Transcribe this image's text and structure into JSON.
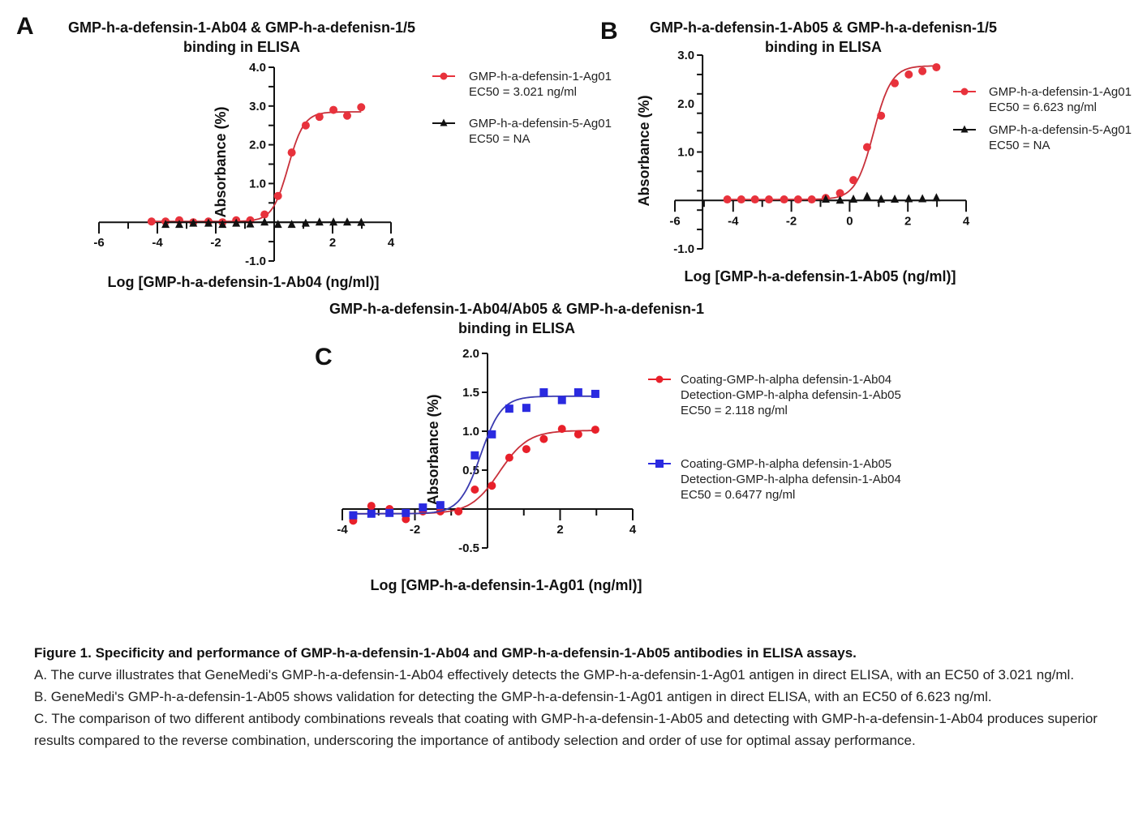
{
  "chart_data": [
    {
      "panel": "A",
      "type": "scatter",
      "title": [
        "GMP-h-a-defensin-1-Ab04 & GMP-h-a-defenisn-1/5",
        "binding in ELISA"
      ],
      "xlabel": "Log [GMP-h-a-defensin-1-Ab04 (ng/ml)]",
      "ylabel": "Absorbance (%)",
      "xlim": [
        -6,
        4
      ],
      "ylim": [
        -1.0,
        4.0
      ],
      "xticks": [
        "-6",
        "-4",
        "-2",
        "2",
        "4"
      ],
      "xtick_values": [
        -6,
        -4,
        -2,
        2,
        4
      ],
      "yticks": [
        "4.0",
        "3.0",
        "2.0",
        "1.0",
        "-1.0"
      ],
      "ytick_values": [
        4,
        3,
        2,
        1,
        -1
      ],
      "grid": false,
      "legend": "right",
      "series": [
        {
          "name": [
            "GMP-h-a-defensin-1-Ag01",
            "EC50 = 3.021 ng/ml"
          ],
          "ec50": 3.021,
          "color": "#e8323c",
          "marker": "circle",
          "fit": true,
          "x": [
            -4.2,
            -3.72,
            -3.25,
            -2.77,
            -2.25,
            -1.77,
            -1.3,
            -0.82,
            -0.33,
            0.13,
            0.6,
            1.08,
            1.55,
            2.03,
            2.5,
            2.98
          ],
          "y": [
            0.02,
            0.02,
            0.05,
            0.0,
            0.02,
            0.0,
            0.05,
            0.05,
            0.2,
            0.68,
            1.8,
            2.5,
            2.72,
            2.9,
            2.75,
            2.97
          ]
        },
        {
          "name": [
            "GMP-h-a-defensin-5-Ag01",
            "EC50 = NA"
          ],
          "ec50": null,
          "color": "#111111",
          "marker": "triangle",
          "fit": false,
          "x": [
            -3.72,
            -3.25,
            -2.77,
            -2.25,
            -1.77,
            -1.3,
            -0.82,
            -0.33,
            0.13,
            0.6,
            1.08,
            1.55,
            2.03,
            2.5,
            2.98
          ],
          "y": [
            -0.06,
            -0.06,
            -0.03,
            -0.03,
            -0.06,
            -0.03,
            -0.05,
            0.0,
            -0.06,
            -0.06,
            -0.03,
            0.0,
            0.0,
            0.0,
            -0.01
          ]
        }
      ]
    },
    {
      "panel": "B",
      "type": "scatter",
      "title": [
        "GMP-h-a-defensin-1-Ab05 & GMP-h-a-defenisn-1/5",
        "binding in ELISA"
      ],
      "xlabel": "Log [GMP-h-a-defensin-1-Ab05 (ng/ml)]",
      "ylabel": "Absorbance (%)",
      "xlim": [
        -6,
        4
      ],
      "ylim": [
        -1.0,
        3.0
      ],
      "xticks": [
        "-6",
        "-4",
        "-2",
        "0",
        "2",
        "4"
      ],
      "xtick_values": [
        -6,
        -4,
        -2,
        0,
        2,
        4
      ],
      "yticks": [
        "3.0",
        "2.0",
        "1.0",
        "-1.0"
      ],
      "ytick_values": [
        3,
        2,
        1,
        -1
      ],
      "grid": false,
      "legend": "right",
      "series": [
        {
          "name": [
            "GMP-h-a-defensin-1-Ag01",
            "EC50 = 6.623 ng/ml"
          ],
          "ec50": 6.623,
          "color": "#e8323c",
          "marker": "circle",
          "fit": true,
          "x": [
            -4.2,
            -3.72,
            -3.25,
            -2.77,
            -2.25,
            -1.77,
            -1.3,
            -0.82,
            -0.33,
            0.13,
            0.6,
            1.08,
            1.55,
            2.03,
            2.5,
            2.98
          ],
          "y": [
            0.02,
            0.02,
            0.02,
            0.02,
            0.02,
            0.02,
            0.02,
            0.05,
            0.15,
            0.42,
            1.1,
            1.75,
            2.42,
            2.6,
            2.67,
            2.75
          ]
        },
        {
          "name": [
            "GMP-h-a-defensin-5-Ag01",
            "EC50 = NA"
          ],
          "ec50": null,
          "color": "#111111",
          "marker": "triangle",
          "fit": false,
          "x": [
            -0.82,
            -0.33,
            0.13,
            0.6,
            1.08,
            1.55,
            2.03,
            2.5,
            2.98
          ],
          "y": [
            0.02,
            0.0,
            0.02,
            0.08,
            0.02,
            0.02,
            0.03,
            0.03,
            0.05
          ]
        }
      ]
    },
    {
      "panel": "C",
      "type": "scatter",
      "title": [
        "GMP-h-a-defensin-1-Ab04/Ab05 & GMP-h-a-defenisn-1",
        "binding in ELISA"
      ],
      "xlabel": "Log [GMP-h-a-defensin-1-Ag01 (ng/ml)]",
      "ylabel": "Absorbance (%)",
      "xlim": [
        -4,
        4
      ],
      "ylim": [
        -0.5,
        2.0
      ],
      "xticks": [
        "-4",
        "-2",
        "2",
        "4"
      ],
      "xtick_values": [
        -4,
        -2,
        2,
        4
      ],
      "yticks": [
        "2.0",
        "1.5",
        "1.0",
        "0.5",
        "-0.5"
      ],
      "ytick_values": [
        2,
        1.5,
        1,
        0.5,
        -0.5
      ],
      "grid": false,
      "legend": "right",
      "series": [
        {
          "name": [
            "Coating-GMP-h-alpha defensin-1-Ab04",
            "Detection-GMP-h-alpha defensin-1-Ab05",
            "EC50 = 2.118 ng/ml"
          ],
          "ec50": 2.118,
          "color": "#e8202a",
          "marker": "circle",
          "fit": true,
          "x": [
            -3.7,
            -3.2,
            -2.7,
            -2.25,
            -1.78,
            -1.3,
            -0.8,
            -0.35,
            0.12,
            0.6,
            1.07,
            1.55,
            2.05,
            2.5,
            2.97
          ],
          "y": [
            -0.15,
            0.04,
            0.0,
            -0.13,
            -0.03,
            -0.03,
            -0.03,
            0.25,
            0.3,
            0.66,
            0.77,
            0.9,
            1.03,
            0.96,
            1.02
          ]
        },
        {
          "name": [
            "Coating-GMP-h-alpha defensin-1-Ab05",
            "Detection-GMP-h-alpha defensin-1-Ab04",
            "EC50 = 0.6477 ng/ml"
          ],
          "ec50": 0.6477,
          "color": "#2a2ae0",
          "marker": "square",
          "fit": true,
          "x": [
            -3.7,
            -3.2,
            -2.7,
            -2.25,
            -1.78,
            -1.3,
            -0.35,
            0.12,
            0.6,
            1.07,
            1.55,
            2.05,
            2.5,
            2.97
          ],
          "y": [
            -0.08,
            -0.06,
            -0.05,
            -0.05,
            0.02,
            0.05,
            0.69,
            0.96,
            1.29,
            1.3,
            1.5,
            1.4,
            1.5,
            1.48
          ]
        }
      ]
    }
  ],
  "caption": {
    "title": "Figure 1. Specificity and performance of GMP-h-a-defensin-1-Ab04 and GMP-h-a-defensin-1-Ab05 antibodies in ELISA assays.",
    "a": "A. The curve illustrates that GeneMedi's GMP-h-a-defensin-1-Ab04 effectively detects the GMP-h-a-defensin-1-Ag01 antigen in direct ELISA, with an EC50 of 3.021 ng/ml.",
    "b": "B. GeneMedi's GMP-h-a-defensin-1-Ab05 shows validation for detecting the GMP-h-a-defensin-1-Ag01 antigen in direct ELISA, with an EC50 of 6.623 ng/ml.",
    "c": "C. The comparison of two different antibody combinations reveals that coating with GMP-h-a-defensin-1-Ab05 and detecting with GMP-h-a-defensin-1-Ab04 produces superior results compared to the reverse combination, underscoring the importance of antibody selection and order of use for optimal assay performance."
  }
}
